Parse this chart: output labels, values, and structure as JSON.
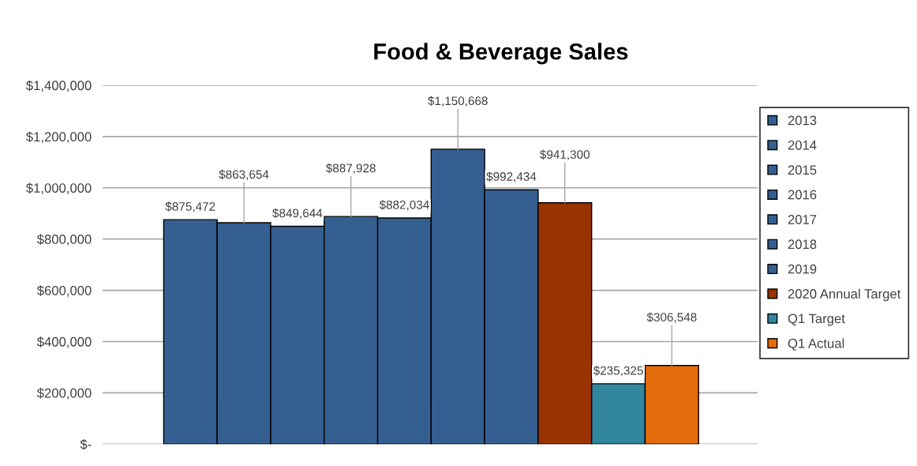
{
  "chart_data": {
    "type": "bar",
    "title": "Food & Beverage Sales",
    "categories": [
      null
    ],
    "series": [
      {
        "name": "2013",
        "color": "#355f91",
        "values": [
          875472
        ],
        "value_labels": [
          "$875,472"
        ]
      },
      {
        "name": "2014",
        "color": "#355f91",
        "values": [
          863654
        ],
        "value_labels": [
          "$863,654"
        ]
      },
      {
        "name": "2015",
        "color": "#355f91",
        "values": [
          849644
        ],
        "value_labels": [
          "$849,644"
        ]
      },
      {
        "name": "2016",
        "color": "#355f91",
        "values": [
          887928
        ],
        "value_labels": [
          "$887,928"
        ]
      },
      {
        "name": "2017",
        "color": "#355f91",
        "values": [
          882034
        ],
        "value_labels": [
          "$882,034"
        ]
      },
      {
        "name": "2018",
        "color": "#355f91",
        "values": [
          1150668
        ],
        "value_labels": [
          "$1,150,668"
        ]
      },
      {
        "name": "2019",
        "color": "#355f91",
        "values": [
          992434
        ],
        "value_labels": [
          "$992,434"
        ]
      },
      {
        "name": "2020 Annual Target",
        "color": "#993300",
        "values": [
          941300
        ],
        "value_labels": [
          "$941,300"
        ]
      },
      {
        "name": "Q1 Target",
        "color": "#31859c",
        "values": [
          235325
        ],
        "value_labels": [
          "$235,325"
        ]
      },
      {
        "name": "Q1 Actual",
        "color": "#e46c0a",
        "values": [
          306548
        ],
        "value_labels": [
          "$306,548"
        ]
      }
    ],
    "ylim": [
      0,
      1400000
    ],
    "yticks": [
      {
        "value": 0,
        "label": "$-"
      },
      {
        "value": 200000,
        "label": "$200,000"
      },
      {
        "value": 400000,
        "label": "$400,000"
      },
      {
        "value": 600000,
        "label": "$600,000"
      },
      {
        "value": 800000,
        "label": "$800,000"
      },
      {
        "value": 1000000,
        "label": "$1,000,000"
      },
      {
        "value": 1200000,
        "label": "$1,200,000"
      },
      {
        "value": 1400000,
        "label": "$1,400,000"
      }
    ],
    "grid": "y",
    "legend": "right"
  }
}
